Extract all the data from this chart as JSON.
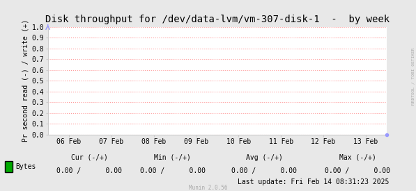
{
  "title": "Disk throughput for /dev/data-lvm/vm-307-disk-1  -  by week",
  "ylabel": "Pr second read (-) / write (+)",
  "background_color": "#e8e8e8",
  "plot_bg_color": "#ffffff",
  "grid_color": "#ff9999",
  "ylim": [
    0.0,
    1.0
  ],
  "yticks": [
    0.0,
    0.1,
    0.2,
    0.3,
    0.4,
    0.5,
    0.6,
    0.7,
    0.8,
    0.9,
    1.0
  ],
  "xtick_labels": [
    "06 Feb",
    "07 Feb",
    "08 Feb",
    "09 Feb",
    "10 Feb",
    "11 Feb",
    "12 Feb",
    "13 Feb"
  ],
  "xtick_positions": [
    0,
    1,
    2,
    3,
    4,
    5,
    6,
    7
  ],
  "legend_label": "Bytes",
  "legend_color": "#00aa00",
  "cur_label": "Cur (-/+)",
  "min_label": "Min (-/+)",
  "avg_label": "Avg (-/+)",
  "max_label": "Max (-/+)",
  "cur_values": "0.00 /      0.00",
  "min_values": "0.00 /      0.00",
  "avg_values": "0.00 /      0.00",
  "max_values": "0.00 /      0.00",
  "last_update": "Last update: Fri Feb 14 08:31:23 2025",
  "munin_version": "Munin 2.0.56",
  "right_label": "RRDTOOL / TOBI OETIKER",
  "title_fontsize": 10,
  "axis_fontsize": 7,
  "tick_fontsize": 7,
  "legend_fontsize": 7,
  "arrow_color": "#9999ff",
  "dot_color": "#9999ff",
  "spine_color": "#cccccc"
}
